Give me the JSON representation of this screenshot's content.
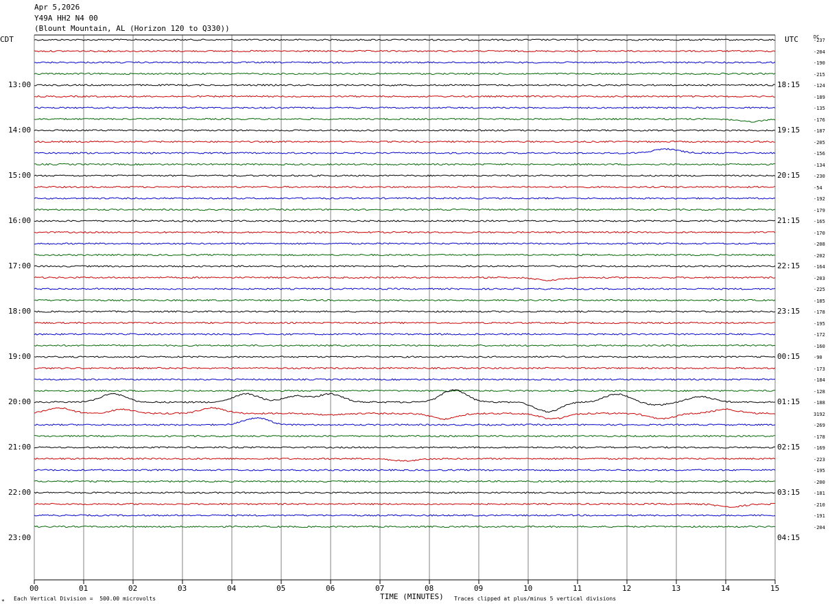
{
  "header": {
    "date": "Apr 5,2026",
    "station": "Y49A HH2 N4 00",
    "location": "(Blount Mountain, AL (Horizon 120 to Q330))"
  },
  "left_tz": "CDT",
  "right_tz": "UTC",
  "dc_header": "DC",
  "footer": {
    "vertical_division": "Each Vertical Division =  500.00 microvolts",
    "clipping": "Traces clipped at plus/minus 5 vertical divisions",
    "mark": "*"
  },
  "colors": {
    "cycle": [
      "#000000",
      "#cc0000",
      "#0000cc",
      "#006600"
    ],
    "grid": "#808080"
  },
  "chart_data": {
    "type": "line",
    "xlabel": "TIME (MINUTES)",
    "xlim": [
      0,
      15
    ],
    "x_ticks": [
      "00",
      "01",
      "02",
      "03",
      "04",
      "05",
      "06",
      "07",
      "08",
      "09",
      "10",
      "11",
      "12",
      "13",
      "14",
      "15"
    ],
    "left_hour_labels": [
      "13:00",
      "14:00",
      "15:00",
      "16:00",
      "17:00",
      "18:00",
      "19:00",
      "20:00",
      "21:00",
      "22:00",
      "23:00"
    ],
    "right_hour_labels": [
      "18:15",
      "19:15",
      "20:15",
      "21:15",
      "22:15",
      "23:15",
      "00:15",
      "01:15",
      "02:15",
      "03:15",
      "04:15"
    ],
    "dc_offsets": [
      "-237",
      "-204",
      "-190",
      "-215",
      "-124",
      "-189",
      "-135",
      "-176",
      "-187",
      "-205",
      "-156",
      "-134",
      "-230",
      "-54",
      "-192",
      "-179",
      "-165",
      "-170",
      "-208",
      "-202",
      "-164",
      "-203",
      "-225",
      "-185",
      "-178",
      "-195",
      "-172",
      "-160",
      "-90",
      "-173",
      "-184",
      "-128",
      "-188",
      "3192",
      "-269",
      "-178",
      "-169",
      "-223",
      "-195",
      "-200",
      "-181",
      "-210",
      "-191",
      "-204"
    ]
  }
}
